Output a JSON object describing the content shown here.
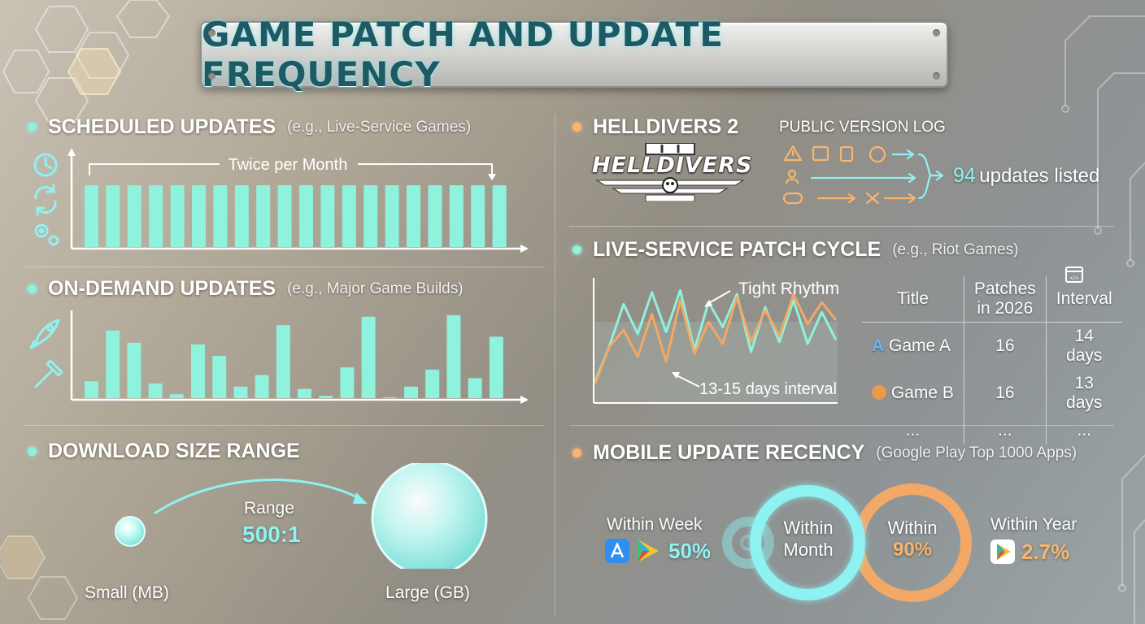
{
  "title": "GAME PATCH AND UPDATE FREQUENCY",
  "scheduled": {
    "heading": "SCHEDULED UPDATES",
    "sub": "(e.g., Live-Service Games)",
    "annotation": "Twice per Month",
    "icons": [
      "clock-icon",
      "refresh-icon",
      "gears-icon"
    ]
  },
  "on_demand": {
    "heading": "ON-DEMAND UPDATES",
    "sub": "(e.g., Major Game Builds)",
    "icons": [
      "rocket-icon",
      "hammer-icon"
    ]
  },
  "download": {
    "heading": "DOWNLOAD SIZE RANGE",
    "range_label": "Range",
    "range_value": "500:1",
    "small_label": "Small (MB)",
    "large_label": "Large (GB)"
  },
  "helldivers": {
    "heading": "HELLDIVERS 2",
    "logo_text": "HELLDIVERS",
    "log_title": "PUBLIC VERSION LOG",
    "count": "94",
    "count_suffix": "updates listed"
  },
  "live_service": {
    "heading": "LIVE-SERVICE PATCH CYCLE",
    "sub": "(e.g., Riot Games)",
    "annot_top": "Tight Rhythm",
    "annot_bottom": "13-15 days interval",
    "table": {
      "headers": [
        "Title",
        "Patches in 2026",
        "Interval"
      ],
      "rows": [
        [
          "Game A",
          "16",
          "14 days"
        ],
        [
          "Game B",
          "16",
          "13 days"
        ],
        [
          "...",
          "...",
          "..."
        ]
      ]
    }
  },
  "mobile": {
    "heading": "MOBILE UPDATE RECENCY",
    "sub": "(Google Play Top 1000 Apps)",
    "week_label": "Within Week",
    "week_value": "50%",
    "month_label_1": "Within",
    "month_label_2": "Month",
    "ninety_label": "Within",
    "ninety_value": "90%",
    "year_label": "Within Year",
    "year_value": "2.7%"
  },
  "chart_data": [
    {
      "type": "bar",
      "title": "SCHEDULED UPDATES",
      "values": [
        1,
        1,
        1,
        1,
        1,
        1,
        1,
        1,
        1,
        1,
        1,
        1,
        1,
        1,
        1,
        1,
        1,
        1,
        1,
        1
      ],
      "colors": {
        "bar": "#8ff2dc"
      }
    },
    {
      "type": "bar",
      "title": "ON-DEMAND UPDATES",
      "values": [
        22,
        88,
        72,
        19,
        5,
        70,
        55,
        15,
        30,
        95,
        12,
        3,
        40,
        106,
        1,
        15,
        37,
        108,
        26,
        80
      ],
      "colors": {
        "bar": "#8ff2dc"
      }
    },
    {
      "type": "line",
      "title": "LIVE-SERVICE PATCH CYCLE",
      "series": [
        {
          "values": [
            20,
            56,
            98,
            68,
            110,
            70,
            112,
            52,
            100,
            75,
            108,
            50,
            95,
            60,
            102,
            58,
            90,
            62
          ]
        },
        {
          "values": [
            18,
            55,
            72,
            45,
            88,
            40,
            102,
            48,
            80,
            58,
            105,
            60,
            92,
            66,
            108,
            78,
            100,
            82
          ]
        }
      ],
      "colors": [
        "#8ff2dc",
        "#f2a866"
      ]
    }
  ]
}
